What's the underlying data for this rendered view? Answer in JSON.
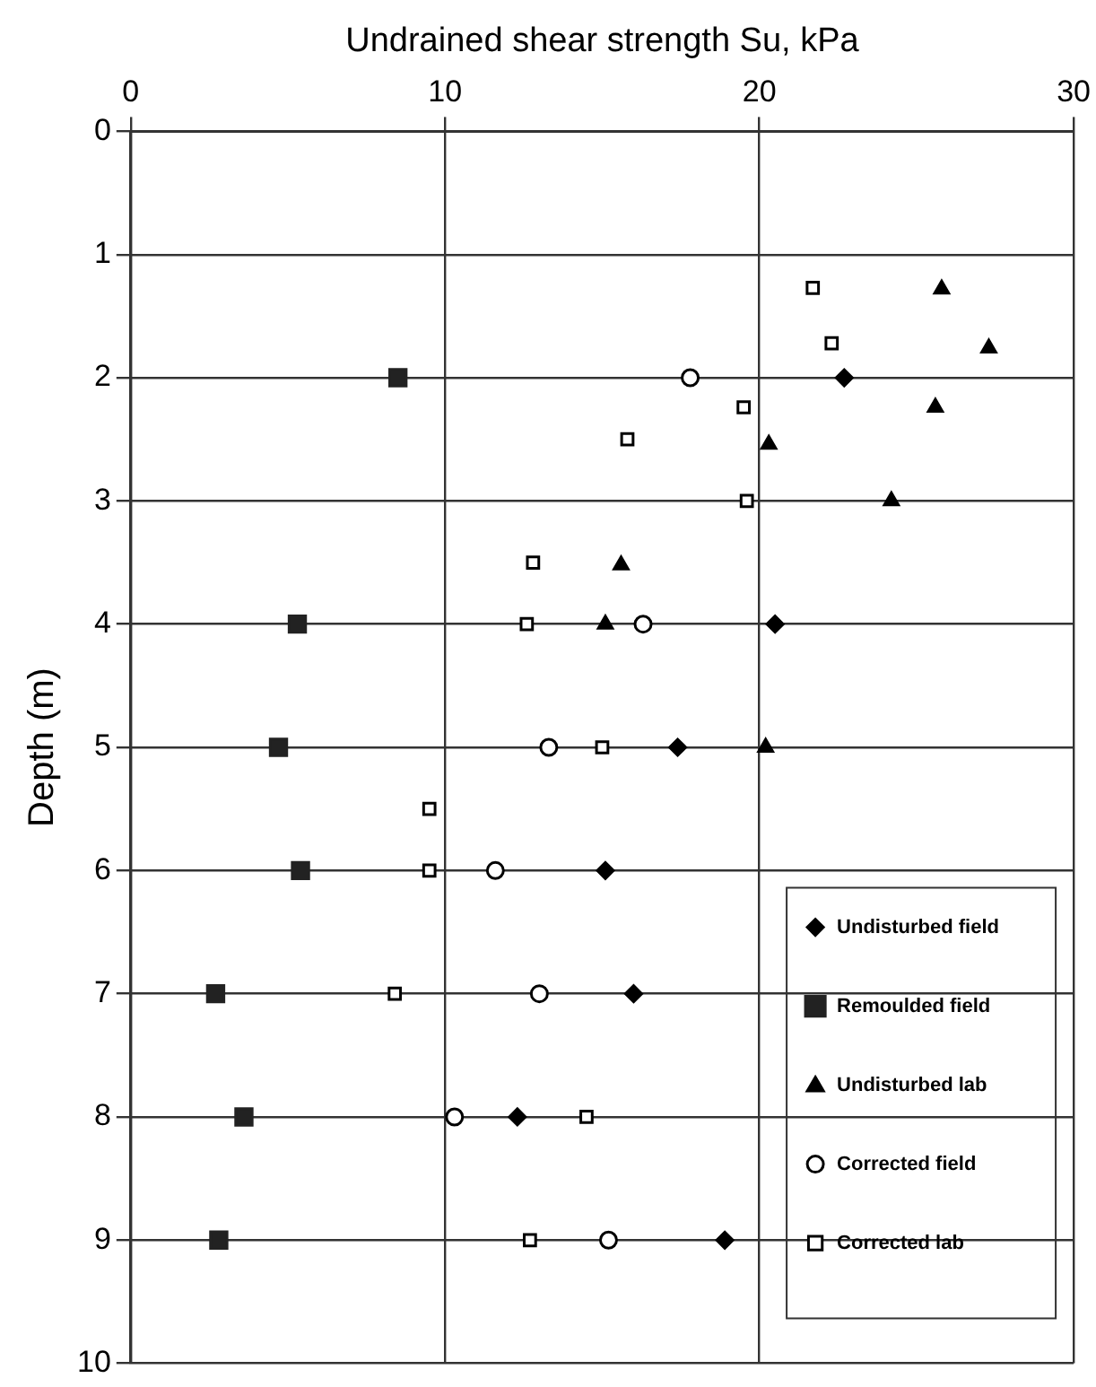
{
  "chart_data": {
    "type": "scatter",
    "xlabel": "Undrained shear strength Su, kPa",
    "ylabel": "Depth (m)",
    "xlim": [
      0,
      30
    ],
    "xticks": [
      0,
      10,
      20,
      30
    ],
    "ylim": [
      10,
      0
    ],
    "yticks": [
      0,
      1,
      2,
      3,
      4,
      5,
      6,
      7,
      8,
      9,
      10
    ],
    "grid": true,
    "legend": "bottom right",
    "series": [
      {
        "name": "Undisturbed field",
        "color": "#000000",
        "marker": "diamond",
        "x": [
          22.7,
          20.5,
          17.4,
          15.1,
          16.0,
          12.3,
          18.9
        ],
        "values": [
          2,
          4,
          5,
          6,
          7,
          8,
          9
        ]
      },
      {
        "name": "Remoulded field",
        "color": "#222222",
        "marker": "square",
        "x": [
          8.5,
          5.3,
          4.7,
          5.4,
          2.7,
          3.6,
          2.8
        ],
        "values": [
          2,
          4,
          5,
          6,
          7,
          8,
          9
        ]
      },
      {
        "name": "Undisturbed lab",
        "color": "#000000",
        "marker": "triangle",
        "x": [
          25.8,
          27.3,
          25.6,
          20.3,
          24.2,
          15.6,
          15.1,
          20.2
        ],
        "values": [
          1.28,
          1.76,
          2.24,
          2.54,
          3.0,
          3.52,
          4,
          5
        ]
      },
      {
        "name": "Corrected field",
        "color": "#000000",
        "marker": "circle",
        "x": [
          17.8,
          16.3,
          13.3,
          11.6,
          13.0,
          10.3,
          15.2
        ],
        "values": [
          2,
          4,
          5,
          6,
          7,
          8,
          9
        ]
      },
      {
        "name": "Corrected lab",
        "color": "#000000",
        "marker": "square",
        "x": [
          21.7,
          22.3,
          19.5,
          15.8,
          19.6,
          12.8,
          12.6,
          15.0,
          9.5,
          9.5,
          8.4,
          14.5,
          12.7
        ],
        "values": [
          1.27,
          1.72,
          2.24,
          2.5,
          3.0,
          3.5,
          4,
          5,
          5.5,
          6,
          7,
          8,
          9
        ]
      }
    ]
  }
}
